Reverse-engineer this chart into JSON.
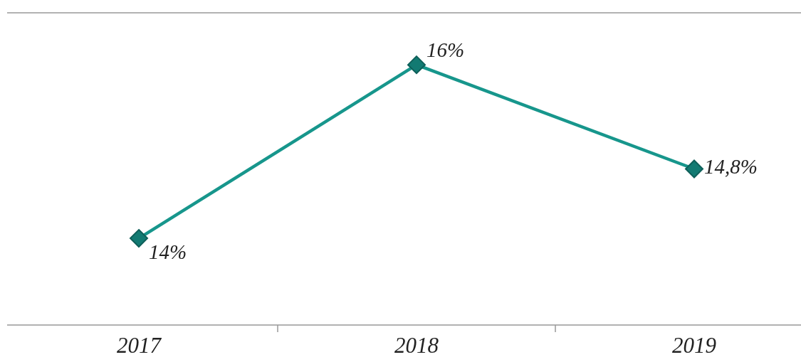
{
  "chart_data": {
    "type": "line",
    "categories": [
      "2017",
      "2018",
      "2019"
    ],
    "series": [
      {
        "color": "#17968c",
        "values": [
          14,
          16,
          14.8
        ],
        "value_labels": [
          "14%",
          "16%",
          "14,8%"
        ]
      }
    ],
    "ylim": [
      13,
      16.6
    ],
    "tick_labels": "x",
    "marker": "diamond",
    "line_style": "solid"
  }
}
